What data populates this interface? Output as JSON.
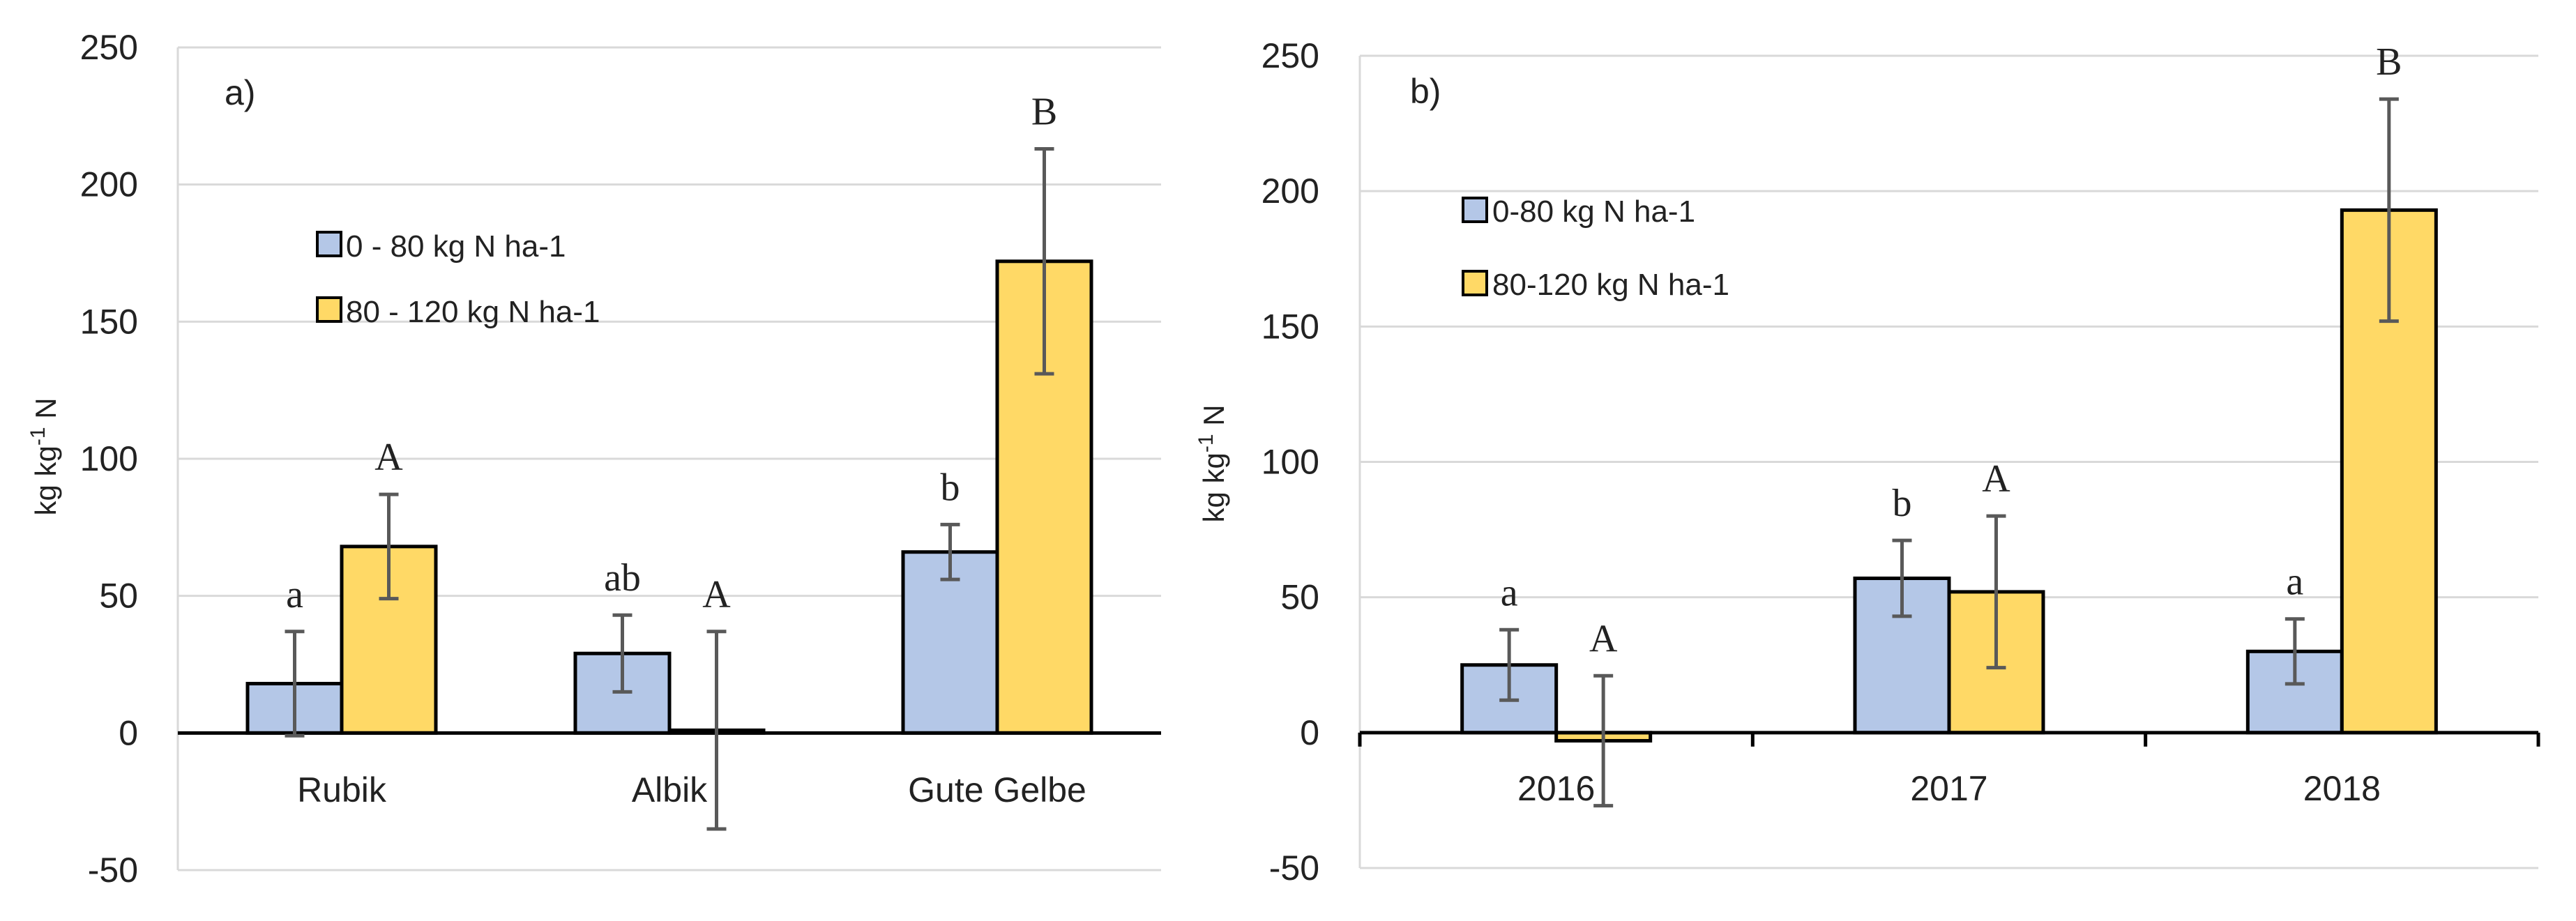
{
  "chart_data": [
    {
      "type": "bar",
      "panel_label": "a)",
      "title": "",
      "xlabel": "",
      "ylabel": "kg kg-1 N",
      "ylabel_parts": {
        "base": "kg kg",
        "sup": "-1",
        "tail": " N"
      },
      "ylim": [
        -50,
        250
      ],
      "yticks": [
        -50,
        0,
        50,
        100,
        150,
        200,
        250
      ],
      "grid": true,
      "legend_position": "upper-left",
      "categories": [
        "Rubik",
        "Albik",
        "Gute Gelbe"
      ],
      "series": [
        {
          "name": "0 - 80 kg N ha-1",
          "color": "#b4c7e7",
          "values": [
            18,
            29,
            66
          ],
          "errors": [
            19,
            14,
            10
          ],
          "labels": [
            "a",
            "ab",
            "b"
          ]
        },
        {
          "name": "80 - 120 kg N ha-1",
          "color": "#ffd966",
          "values": [
            68,
            1,
            172
          ],
          "errors": [
            19,
            36,
            41
          ],
          "labels": [
            "A",
            "A",
            "B"
          ]
        }
      ]
    },
    {
      "type": "bar",
      "panel_label": "b)",
      "title": "",
      "xlabel": "",
      "ylabel": "kg kg-1 N",
      "ylabel_parts": {
        "base": "kg kg",
        "sup": "-1",
        "tail": " N"
      },
      "ylim": [
        -50,
        250
      ],
      "yticks": [
        -50,
        0,
        50,
        100,
        150,
        200,
        250
      ],
      "grid": true,
      "legend_position": "upper-left",
      "categories": [
        "2016",
        "2017",
        "2018"
      ],
      "series": [
        {
          "name": "0-80 kg N ha-1",
          "color": "#b4c7e7",
          "values": [
            25,
            57,
            30
          ],
          "errors": [
            13,
            14,
            12
          ],
          "labels": [
            "a",
            "b",
            "a"
          ]
        },
        {
          "name": "80-120 kg N ha-1",
          "color": "#ffd966",
          "values": [
            -3,
            52,
            193
          ],
          "errors": [
            24,
            28,
            41
          ],
          "labels": [
            "A",
            "A",
            "B"
          ]
        }
      ]
    }
  ]
}
